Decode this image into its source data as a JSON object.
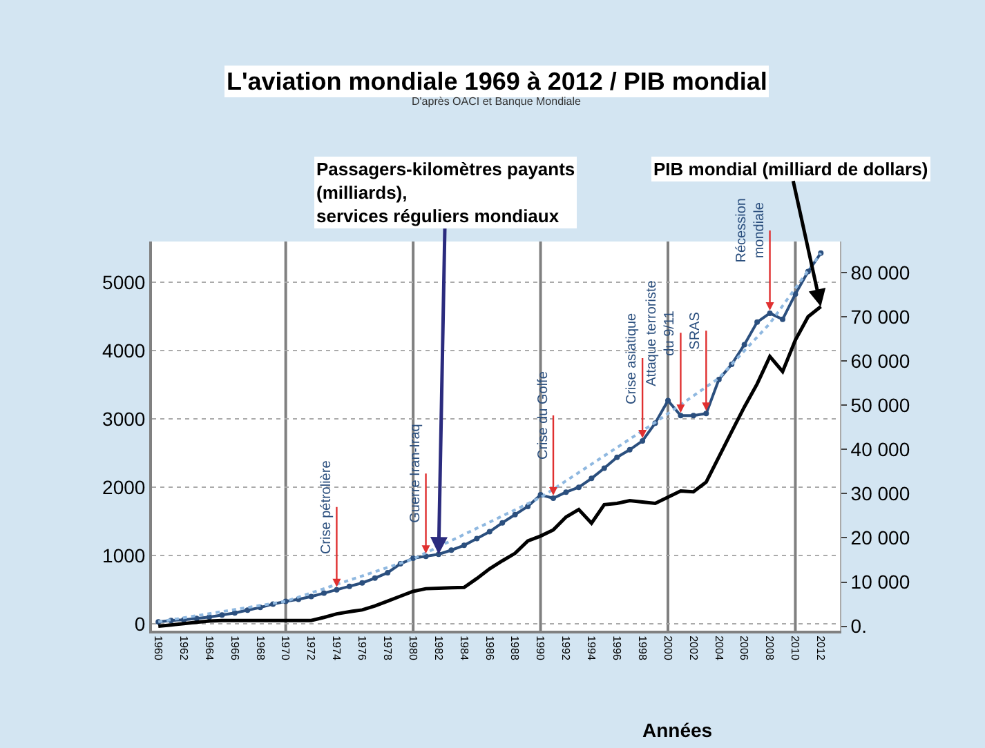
{
  "chart_data": {
    "type": "line",
    "title": "L'aviation mondiale 1969 à 2012 / PIB mondial",
    "subtitle": "D'après OACI et Banque Mondiale",
    "xlabel": "Années",
    "ylabel": "Passagers-kilomètres payants\n(milliards),\nservices réguliers mondiaux",
    "y2label": "PIB mondial (milliard de dollars)",
    "x": [
      1960,
      1961,
      1962,
      1963,
      1964,
      1965,
      1966,
      1967,
      1968,
      1969,
      1970,
      1971,
      1972,
      1973,
      1974,
      1975,
      1976,
      1977,
      1978,
      1979,
      1980,
      1981,
      1982,
      1983,
      1984,
      1985,
      1986,
      1987,
      1988,
      1989,
      1990,
      1991,
      1992,
      1993,
      1994,
      1995,
      1996,
      1997,
      1998,
      1999,
      2000,
      2001,
      2002,
      2003,
      2004,
      2005,
      2006,
      2007,
      2008,
      2009,
      2010,
      2011,
      2012
    ],
    "series": [
      {
        "color": "#2b4f7e",
        "marker": "circle",
        "values": [
          30,
          50,
          60,
          80,
          100,
          130,
          160,
          200,
          240,
          290,
          330,
          360,
          400,
          450,
          500,
          550,
          600,
          670,
          750,
          880,
          960,
          990,
          1020,
          1080,
          1150,
          1250,
          1350,
          1480,
          1600,
          1720,
          1890,
          1840,
          1930,
          2000,
          2130,
          2280,
          2440,
          2550,
          2680,
          2940,
          3270,
          3050,
          3050,
          3080,
          3580,
          3800,
          4090,
          4420,
          4550,
          4460,
          4830,
          5160,
          5430
        ]
      },
      {
        "color": "#8fb8e0",
        "line_style": "dotted",
        "x": [
          1960,
          1970,
          1980,
          1990,
          1999,
          2004,
          2008,
          2012
        ],
        "values": [
          30,
          330,
          950,
          1850,
          2950,
          3600,
          4400,
          5430
        ]
      },
      {
        "color": "#000000",
        "axis": "y2",
        "values": [
          0,
          300,
          600,
          900,
          1200,
          1300,
          1300,
          1300,
          1300,
          1300,
          1300,
          1300,
          1300,
          2000,
          2800,
          3300,
          3700,
          4600,
          5700,
          6800,
          7900,
          8500,
          8600,
          8700,
          8800,
          10800,
          13000,
          14800,
          16500,
          19300,
          20400,
          21800,
          24700,
          26400,
          23300,
          27500,
          27800,
          28400,
          28100,
          27800,
          29200,
          30600,
          30400,
          32600,
          38300,
          44000,
          49600,
          54800,
          61000,
          57600,
          64700,
          70000,
          72300
        ]
      }
    ],
    "xlim": [
      1959.5,
      2013.5
    ],
    "xticks": [
      1960,
      1962,
      1964,
      1966,
      1968,
      1970,
      1972,
      1974,
      1976,
      1978,
      1980,
      1982,
      1984,
      1986,
      1988,
      1990,
      1992,
      1994,
      1996,
      1998,
      2000,
      2002,
      2004,
      2006,
      2008,
      2010,
      2012
    ],
    "ylim": [
      -100,
      5600
    ],
    "yticks": [
      0,
      1000,
      2000,
      3000,
      4000,
      5000
    ],
    "y2lim": [
      -1000,
      87000
    ],
    "y2ticks": [
      {
        "value": 0,
        "label": "0."
      },
      {
        "value": 10000,
        "label": "10 000"
      },
      {
        "value": 20000,
        "label": "20 000"
      },
      {
        "value": 30000,
        "label": "30 000"
      },
      {
        "value": 40000,
        "label": "40 000"
      },
      {
        "value": 50000,
        "label": "50 000"
      },
      {
        "value": 60000,
        "label": "60 000"
      },
      {
        "value": 70000,
        "label": "70 000"
      },
      {
        "value": 80000,
        "label": "80 000"
      }
    ],
    "ref_lines": [
      {
        "axis": "x",
        "value": 1970,
        "color": "#808080"
      },
      {
        "axis": "x",
        "value": 1980,
        "color": "#808080"
      },
      {
        "axis": "x",
        "value": 1990,
        "color": "#808080"
      },
      {
        "axis": "x",
        "value": 2000,
        "color": "#808080"
      },
      {
        "axis": "x",
        "value": 2010,
        "color": "#808080"
      }
    ],
    "annotations": [
      {
        "text": "Crise pétrolière",
        "x": 1974,
        "y": 500
      },
      {
        "text": "Guerre Iran-Iraq",
        "x": 1981,
        "y": 990
      },
      {
        "text": "Crise du Golfe",
        "x": 1991,
        "y": 1840
      },
      {
        "text": "Crise asiatique",
        "x": 1998,
        "y": 2680
      },
      {
        "text": "Attaque terroriste\ndu 9/11",
        "x": 2001,
        "y": 3050
      },
      {
        "text": "SRAS",
        "x": 2003,
        "y": 3080
      },
      {
        "text": "Récession\nmondiale",
        "x": 2008,
        "y": 4550
      }
    ],
    "grid": "y"
  }
}
